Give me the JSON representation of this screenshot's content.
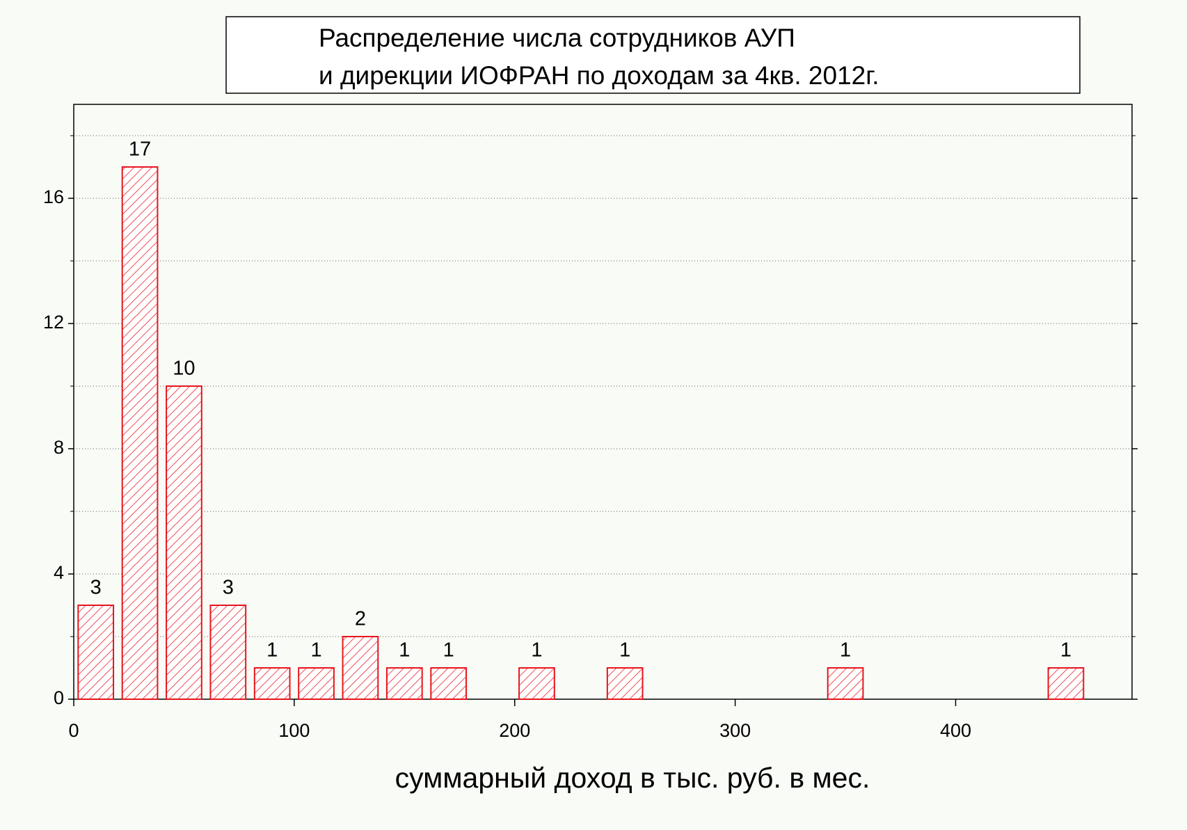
{
  "chart_data": {
    "type": "bar",
    "title": [
      "Распределение числа сотрудников АУП",
      "и дирекции ИОФРАН по доходам за 4кв. 2012г."
    ],
    "x_label": "суммарный доход в тыс. руб. в мес.",
    "x": [
      10,
      30,
      50,
      70,
      90,
      110,
      130,
      150,
      170,
      210,
      250,
      350,
      450
    ],
    "values": [
      3,
      17,
      10,
      3,
      1,
      1,
      2,
      1,
      1,
      1,
      1,
      1,
      1
    ],
    "color": "#e8141c",
    "xlim": [
      0,
      480
    ],
    "xticks": [
      0,
      100,
      200,
      300,
      400
    ],
    "ylim": [
      0,
      19
    ],
    "yticks": [
      0,
      4,
      8,
      12,
      16
    ],
    "minor_yticks": [
      2,
      6,
      10,
      14,
      18
    ],
    "grid": true
  }
}
